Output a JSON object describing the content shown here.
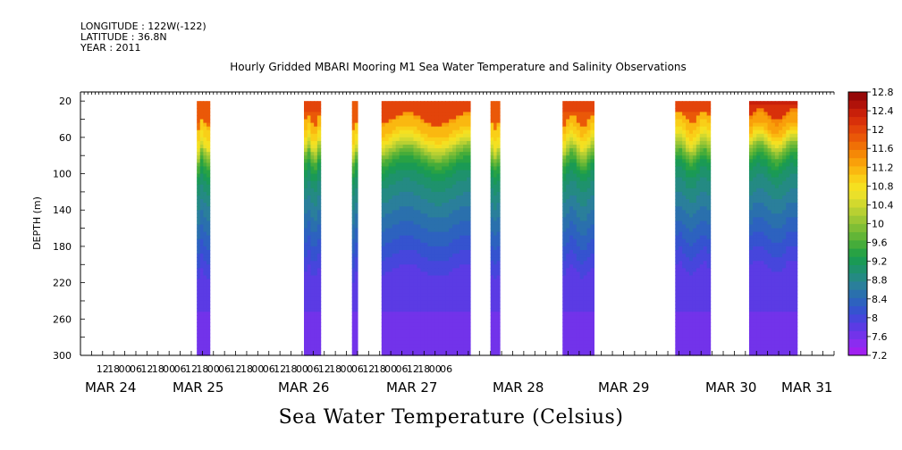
{
  "header": {
    "longitude": "LONGITUDE : 122W(-122)",
    "latitude": "LATITUDE : 36.8N",
    "year": "YEAR : 2011"
  },
  "chart_data": {
    "type": "heatmap",
    "title": "Hourly Gridded MBARI Mooring M1 Sea Water Temperature and Salinity Observations",
    "xlabel": "Sea Water Temperature (Celsius)",
    "ylabel": "DEPTH (m)",
    "ylim": [
      300,
      10
    ],
    "y_ticks": [
      20,
      60,
      100,
      140,
      180,
      220,
      260,
      300
    ],
    "x_hour_ticks": [
      "12",
      "18",
      "00",
      "06",
      "12",
      "18",
      "00",
      "06",
      "12",
      "18",
      "00",
      "06",
      "12",
      "18",
      "00",
      "06",
      "12",
      "18",
      "00",
      "06",
      "12",
      "18",
      "00",
      "06",
      "12",
      "18",
      "00",
      "06",
      "12",
      "18",
      "00",
      "06"
    ],
    "x_day_labels": [
      "MAR 24",
      "MAR 25",
      "MAR 26",
      "MAR 27",
      "MAR 28",
      "MAR 29",
      "MAR 30",
      "MAR 31"
    ],
    "colorbar": {
      "min": 7.2,
      "max": 12.8,
      "step": 0.2,
      "tick_labels": [
        "7.2",
        "7.6",
        "8",
        "8.4",
        "8.8",
        "9.2",
        "9.6",
        "10",
        "10.4",
        "10.8",
        "11.2",
        "11.6",
        "12",
        "12.4",
        "12.8"
      ],
      "colors": [
        "#a020f0",
        "#8a2cf0",
        "#7233ea",
        "#5b3be4",
        "#4646dc",
        "#3553cf",
        "#2d62bf",
        "#2a70ad",
        "#2a7f9b",
        "#248a83",
        "#1e926c",
        "#1a9a55",
        "#28a244",
        "#45ac3a",
        "#62b537",
        "#7fbe35",
        "#9cc734",
        "#b8d032",
        "#d2d92e",
        "#eae02a",
        "#f5e020",
        "#f9cf18",
        "#fab810",
        "#f9a00a",
        "#f58806",
        "#f07006",
        "#ea5808",
        "#e3440a",
        "#d8300a",
        "#c8200a",
        "#b0120a",
        "#960808"
      ]
    },
    "segments_hours_since_start": [
      {
        "start": 63,
        "end": 70,
        "surface_temp": 11.9,
        "thermocline_depth": 75
      },
      {
        "start": 121,
        "end": 130,
        "surface_temp": 12.0,
        "thermocline_depth": 72
      },
      {
        "start": 147,
        "end": 150,
        "surface_temp": 11.9,
        "thermocline_depth": 80
      },
      {
        "start": 163,
        "end": 211,
        "surface_temp": 12.1,
        "thermocline_depth": 70
      },
      {
        "start": 222,
        "end": 227,
        "surface_temp": 11.9,
        "thermocline_depth": 78
      },
      {
        "start": 261,
        "end": 278,
        "surface_temp": 12.0,
        "thermocline_depth": 72
      },
      {
        "start": 322,
        "end": 341,
        "surface_temp": 12.0,
        "thermocline_depth": 68
      },
      {
        "start": 362,
        "end": 388,
        "surface_temp": 12.3,
        "thermocline_depth": 65
      }
    ],
    "grid": false,
    "legend": "right colorbar"
  }
}
